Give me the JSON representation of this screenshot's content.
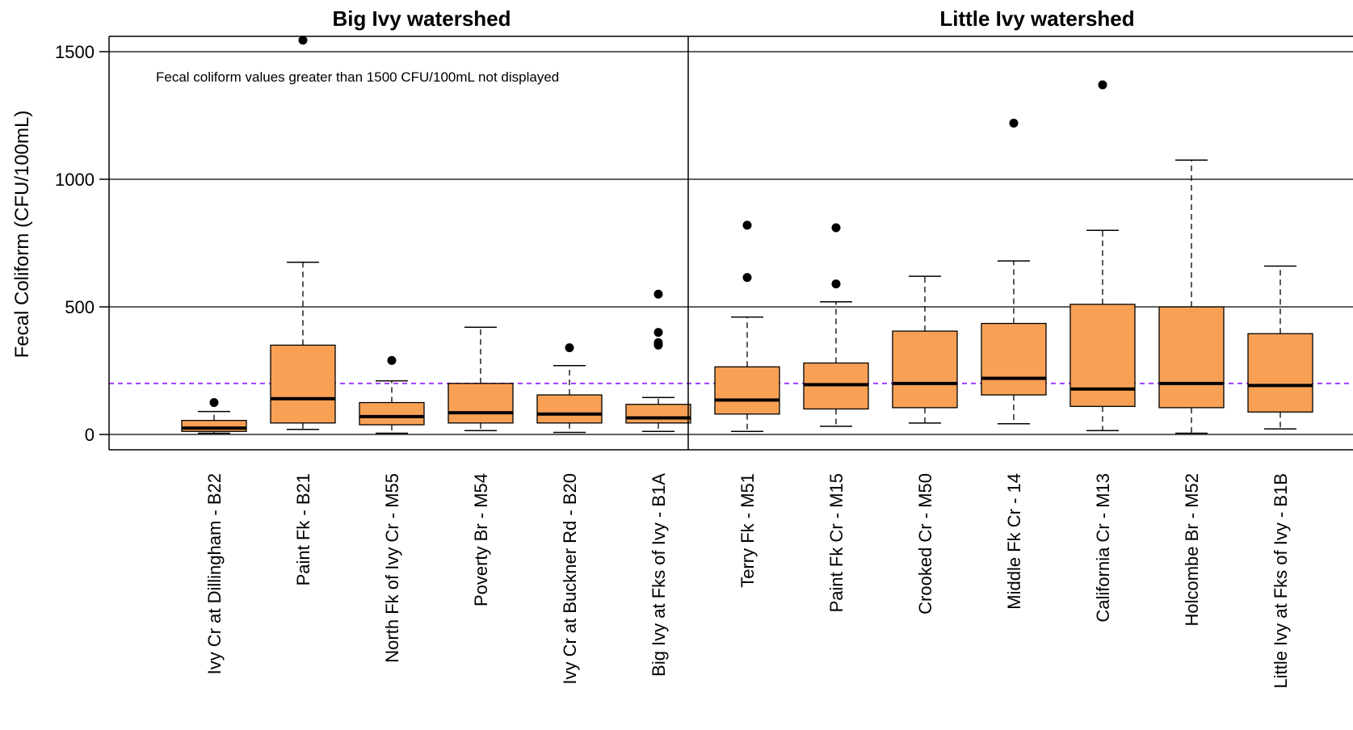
{
  "chart_data": {
    "type": "box",
    "panels": [
      {
        "title": "Big Ivy watershed",
        "first": 0,
        "last": 5
      },
      {
        "title": "Little Ivy watershed",
        "first": 6,
        "last": 12
      }
    ],
    "ylabel": "Fecal Coliform (CFU/100mL)",
    "ylim": [
      -60,
      1560
    ],
    "yticks": [
      0,
      500,
      1000,
      1500
    ],
    "reference_line": {
      "value": 200,
      "color": "#9b30ff",
      "style": "dashed"
    },
    "annotation": "Fecal coliform values greater than 1500 CFU/100mL not displayed",
    "grid": "horizontal at y ticks",
    "box_color": "#f8a155",
    "categories": [
      "Ivy Cr at Dillingham - B22",
      "Paint Fk - B21",
      "North Fk of Ivy Cr - M55",
      "Poverty Br - M54",
      "Ivy Cr at Buckner Rd - B20",
      "Big Ivy at Fks of Ivy - B1A",
      "Terry Fk - M51",
      "Paint Fk Cr - M15",
      "Crooked Cr - M50",
      "Middle Fk Cr - 14",
      "California Cr - M13",
      "Holcombe Br - M52",
      "Little Ivy at Fks of Ivy - B1B"
    ],
    "boxes": [
      {
        "min": 5,
        "q1": 12,
        "median": 25,
        "q3": 55,
        "max": 90,
        "outliers": [
          125
        ]
      },
      {
        "min": 20,
        "q1": 45,
        "median": 140,
        "q3": 350,
        "max": 675,
        "outliers": [
          1545
        ]
      },
      {
        "min": 5,
        "q1": 38,
        "median": 70,
        "q3": 125,
        "max": 210,
        "outliers": [
          290
        ]
      },
      {
        "min": 15,
        "q1": 45,
        "median": 85,
        "q3": 200,
        "max": 420,
        "outliers": []
      },
      {
        "min": 8,
        "q1": 45,
        "median": 80,
        "q3": 155,
        "max": 270,
        "outliers": [
          340
        ]
      },
      {
        "min": 12,
        "q1": 45,
        "median": 65,
        "q3": 118,
        "max": 145,
        "outliers": [
          350,
          360,
          400,
          550
        ]
      },
      {
        "min": 12,
        "q1": 80,
        "median": 135,
        "q3": 265,
        "max": 460,
        "outliers": [
          615,
          820
        ]
      },
      {
        "min": 32,
        "q1": 100,
        "median": 195,
        "q3": 280,
        "max": 520,
        "outliers": [
          590,
          810
        ]
      },
      {
        "min": 45,
        "q1": 105,
        "median": 200,
        "q3": 405,
        "max": 620,
        "outliers": []
      },
      {
        "min": 42,
        "q1": 155,
        "median": 220,
        "q3": 435,
        "max": 680,
        "outliers": [
          1220
        ]
      },
      {
        "min": 15,
        "q1": 110,
        "median": 178,
        "q3": 510,
        "max": 800,
        "outliers": [
          1370
        ]
      },
      {
        "min": 5,
        "q1": 105,
        "median": 200,
        "q3": 500,
        "max": 1075,
        "outliers": []
      },
      {
        "min": 22,
        "q1": 88,
        "median": 192,
        "q3": 395,
        "max": 660,
        "outliers": []
      }
    ]
  }
}
